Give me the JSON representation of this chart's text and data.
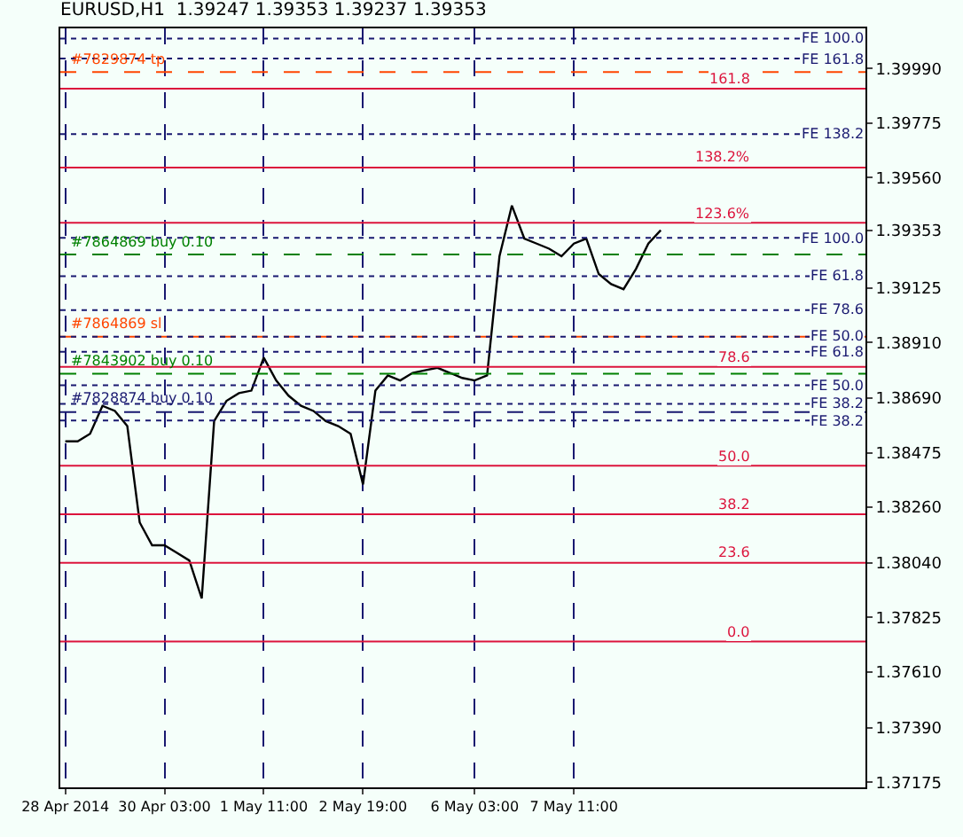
{
  "chart_data": {
    "type": "line",
    "title": "EURUSD,H1  1.39247 1.39353 1.39237 1.39353",
    "categories": [
      "28 Apr 2014",
      null,
      null,
      null,
      null,
      null,
      null,
      null,
      "30 Apr 03:00",
      null,
      null,
      null,
      null,
      null,
      null,
      null,
      "1 May 11:00",
      null,
      null,
      null,
      null,
      null,
      null,
      null,
      "2 May 19:00",
      null,
      null,
      null,
      null,
      null,
      null,
      null,
      null,
      "6 May 03:00",
      null,
      null,
      null,
      null,
      null,
      null,
      null,
      "7 May 11:00",
      null,
      null,
      null,
      null,
      null,
      null,
      null,
      null,
      null,
      null,
      null,
      null,
      null,
      null,
      null,
      null,
      null,
      null,
      null,
      null,
      null,
      null,
      null
    ],
    "series": [
      {
        "color": "#000000",
        "values": [
          1.3852,
          1.3852,
          1.3855,
          1.3866,
          1.3864,
          1.3858,
          1.382,
          1.3811,
          1.3811,
          1.3808,
          1.3805,
          1.379,
          1.386,
          1.3868,
          1.3871,
          1.3872,
          1.3885,
          1.3876,
          1.387,
          1.3866,
          1.3864,
          1.386,
          1.3858,
          1.3855,
          1.3835,
          1.3872,
          1.3878,
          1.3876,
          1.3879,
          1.388,
          1.3881,
          1.3879,
          1.3877,
          1.3876,
          1.3878,
          1.3925,
          1.3945,
          1.3932,
          1.393,
          1.3928,
          1.3925,
          1.393,
          1.3932,
          1.3918,
          1.3914,
          1.3912,
          1.392,
          1.393,
          1.39353,
          null,
          null,
          null,
          null,
          null,
          null,
          null,
          null,
          null,
          null,
          null,
          null,
          null,
          null,
          null,
          null
        ]
      }
    ],
    "ylim": [
      1.37155,
      1.40149
    ],
    "yticks": [
      {
        "value": 1.3999,
        "label": "1.39990"
      },
      {
        "value": 1.39775,
        "label": "1.39775"
      },
      {
        "value": 1.3956,
        "label": "1.39560"
      },
      {
        "value": 1.39353,
        "label": "1.39353"
      },
      {
        "value": 1.39125,
        "label": "1.39125"
      },
      {
        "value": 1.3891,
        "label": "1.38910"
      },
      {
        "value": 1.3869,
        "label": "1.38690"
      },
      {
        "value": 1.38475,
        "label": "1.38475"
      },
      {
        "value": 1.3826,
        "label": "1.38260"
      },
      {
        "value": 1.3804,
        "label": "1.38040"
      },
      {
        "value": 1.37825,
        "label": "1.37825"
      },
      {
        "value": 1.3761,
        "label": "1.37610"
      },
      {
        "value": 1.3739,
        "label": "1.37390"
      },
      {
        "value": 1.37175,
        "label": "1.37175"
      }
    ],
    "grid": "x",
    "marker": "none",
    "line_style": "solid",
    "ref_lines": [
      {
        "axis": "y",
        "value": 1.39977,
        "label": "#7829874 tp",
        "color": "#ff4500",
        "line_style": "dashed"
      },
      {
        "axis": "y",
        "value": 1.39257,
        "label": "#7864869 buy 0.10",
        "color": "#008000",
        "line_style": "dashed"
      },
      {
        "axis": "y",
        "value": 1.38933,
        "label": "#7864869 sl",
        "color": "#ff4500",
        "line_style": "dashed"
      },
      {
        "axis": "y",
        "value": 1.38787,
        "label": "#7843902 buy 0.10",
        "color": "#008000",
        "line_style": "dashed"
      },
      {
        "axis": "y",
        "value": 1.38635,
        "label": "#7828874 buy 0.10",
        "color": "#191970",
        "line_style": "dashed"
      },
      {
        "axis": "y",
        "value": 1.39911,
        "color": "#dc143c",
        "line_style": "solid"
      },
      {
        "axis": "y",
        "value": 1.396,
        "color": "#dc143c",
        "line_style": "solid"
      },
      {
        "axis": "y",
        "value": 1.39382,
        "color": "#dc143c",
        "line_style": "solid"
      },
      {
        "axis": "y",
        "value": 1.38814,
        "color": "#dc143c",
        "line_style": "solid"
      },
      {
        "axis": "y",
        "value": 1.38424,
        "color": "#dc143c",
        "line_style": "solid"
      },
      {
        "axis": "y",
        "value": 1.38232,
        "color": "#dc143c",
        "line_style": "solid"
      },
      {
        "axis": "y",
        "value": 1.38041,
        "color": "#dc143c",
        "line_style": "solid"
      },
      {
        "axis": "y",
        "value": 1.3773,
        "color": "#dc143c",
        "line_style": "solid"
      },
      {
        "axis": "y",
        "value": 1.40109,
        "label": "FE 100.0",
        "color": "#191970",
        "line_style": "dotted"
      },
      {
        "axis": "y",
        "value": 1.4003,
        "label": "FE 161.8",
        "color": "#191970",
        "line_style": "dotted"
      },
      {
        "axis": "y",
        "value": 1.39732,
        "label": "FE 138.2",
        "color": "#191970",
        "line_style": "dotted"
      },
      {
        "axis": "y",
        "value": 1.39323,
        "label": "FE 100.0",
        "color": "#191970",
        "line_style": "dotted"
      },
      {
        "axis": "y",
        "value": 1.39171,
        "label": "FE 61.8",
        "color": "#191970",
        "line_style": "dotted"
      },
      {
        "axis": "y",
        "value": 1.39038,
        "label": "FE 78.6",
        "color": "#191970",
        "line_style": "dotted"
      },
      {
        "axis": "y",
        "value": 1.38933,
        "label": "FE 50.0",
        "color": "#191970",
        "line_style": "dotted"
      },
      {
        "axis": "y",
        "value": 1.38873,
        "label": "FE 61.8",
        "color": "#191970",
        "line_style": "dotted"
      },
      {
        "axis": "y",
        "value": 1.38741,
        "label": "FE 50.0",
        "color": "#191970",
        "line_style": "dotted"
      },
      {
        "axis": "y",
        "value": 1.38668,
        "label": "FE 38.2",
        "color": "#191970",
        "line_style": "dotted"
      },
      {
        "axis": "y",
        "value": 1.38602,
        "label": "FE 38.2",
        "color": "#191970",
        "line_style": "dotted"
      }
    ],
    "annotations": [
      {
        "text": "161.8",
        "y": 1.39911
      },
      {
        "text": "138.2%",
        "y": 1.396
      },
      {
        "text": "123.6%",
        "y": 1.39382
      },
      {
        "text": "78.6",
        "y": 1.38814
      },
      {
        "text": "50.0",
        "y": 1.38424
      },
      {
        "text": "38.2",
        "y": 1.38232
      },
      {
        "text": "23.6",
        "y": 1.38041
      },
      {
        "text": "0.0",
        "y": 1.3773
      }
    ]
  }
}
